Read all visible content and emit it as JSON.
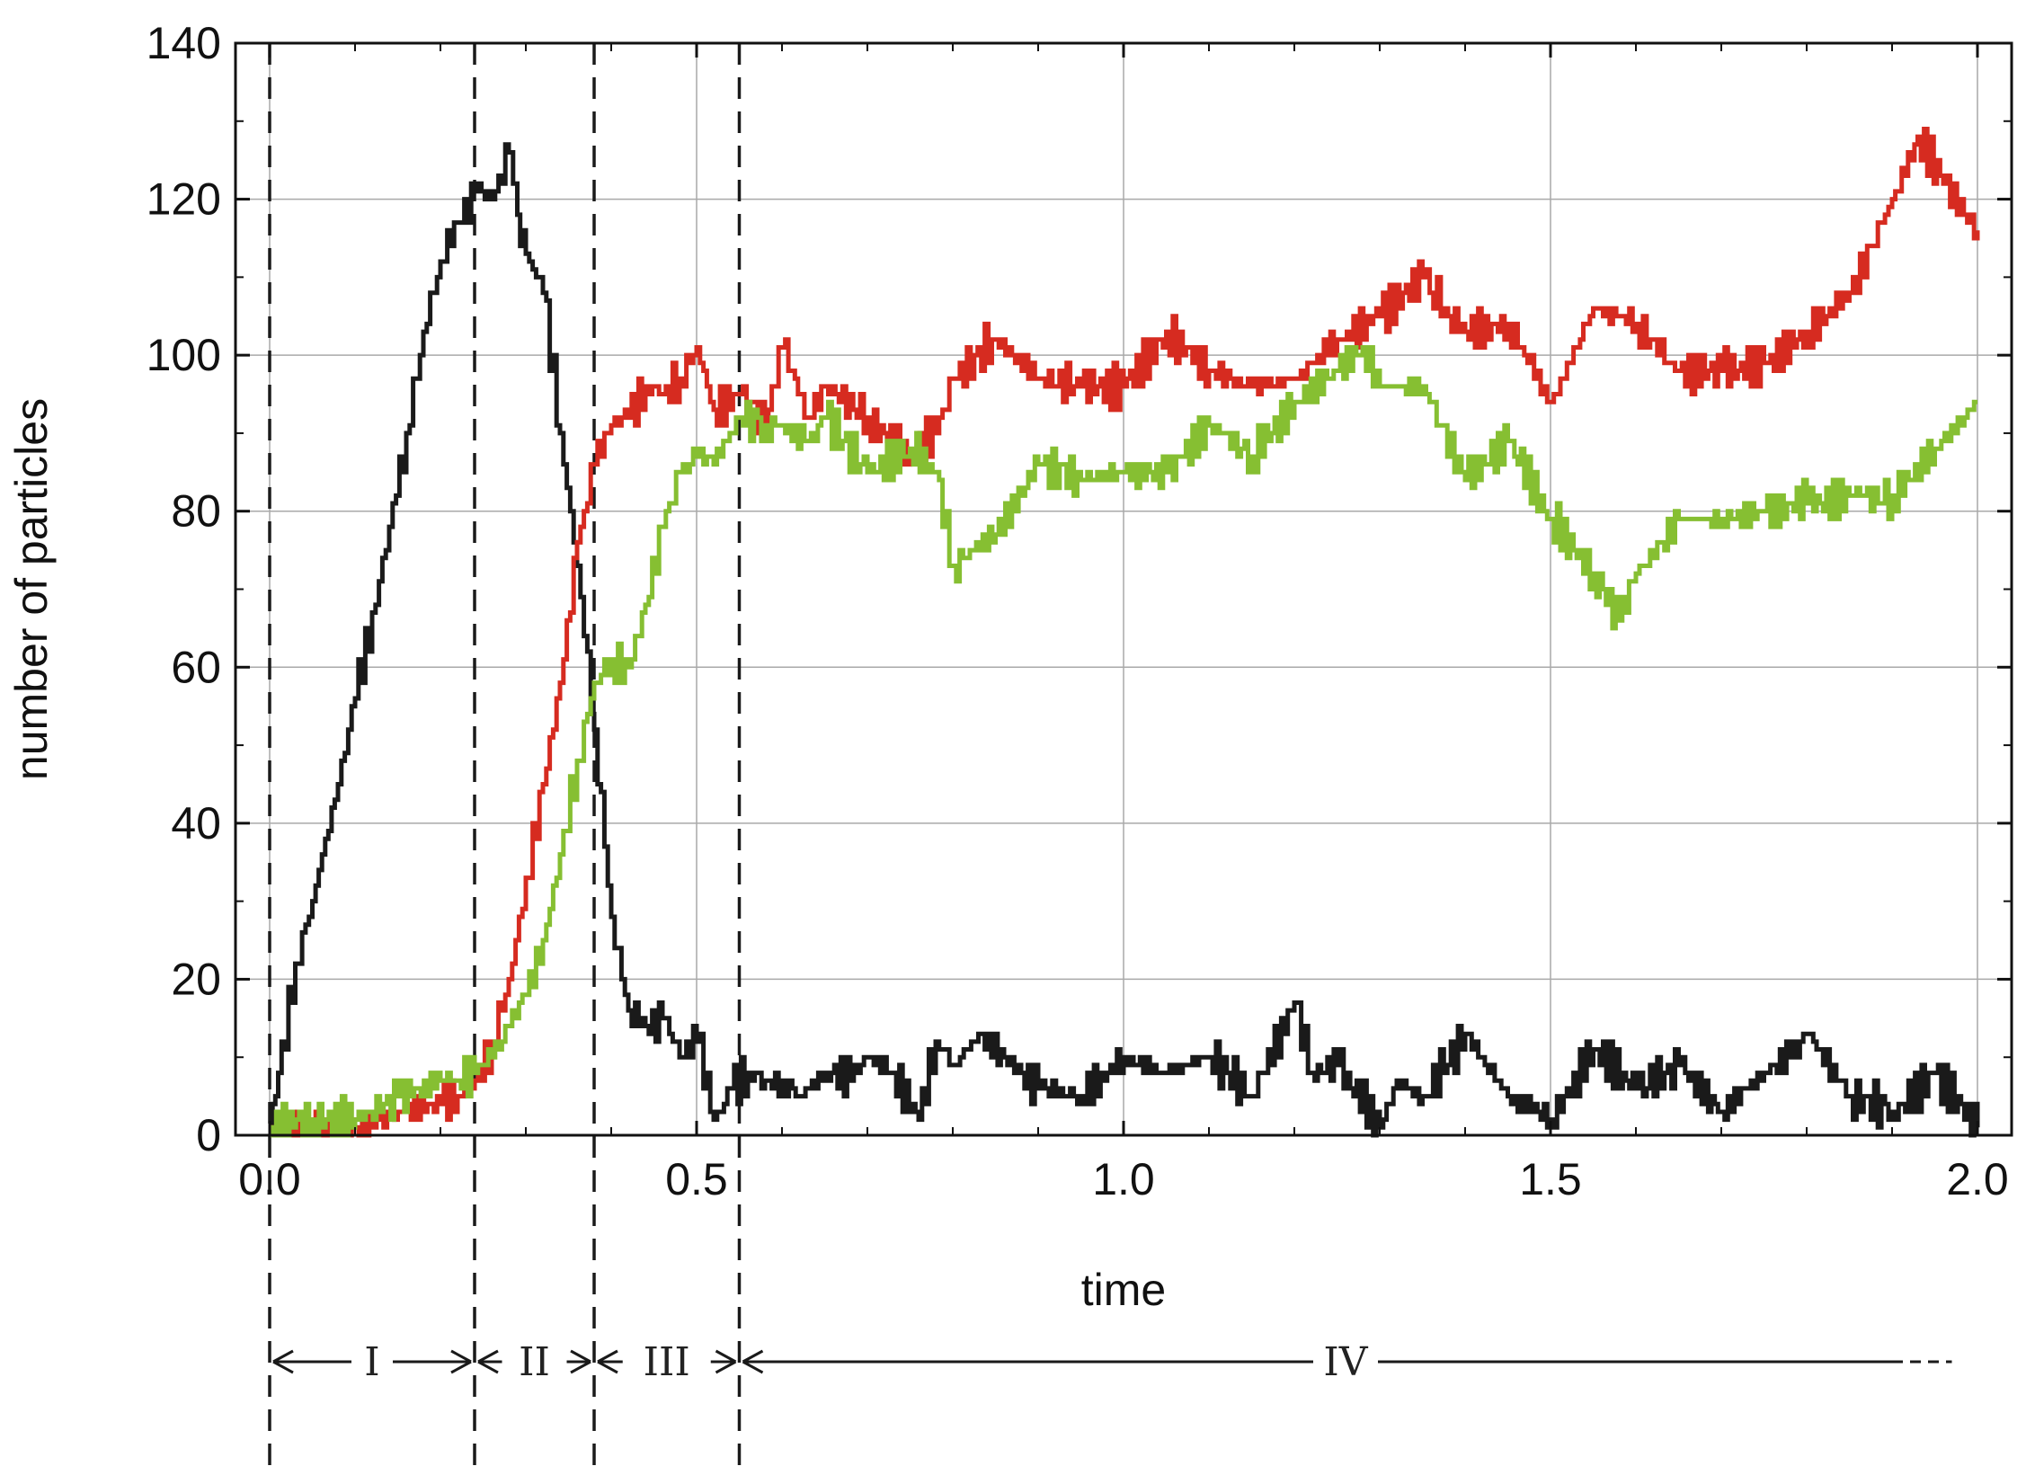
{
  "chart_data": {
    "type": "line",
    "title": "",
    "xlabel": "time",
    "ylabel": "number of particles",
    "xlim": [
      -0.04,
      2.04
    ],
    "ylim": [
      0,
      140
    ],
    "x_ticks": [
      0.0,
      0.5,
      1.0,
      1.5,
      2.0
    ],
    "x_tick_labels": [
      "0.0",
      "0.5",
      "1.0",
      "1.5",
      "2.0"
    ],
    "y_ticks": [
      0,
      20,
      40,
      60,
      80,
      100,
      120,
      140
    ],
    "y_tick_labels": [
      "0",
      "20",
      "40",
      "60",
      "80",
      "100",
      "120",
      "140"
    ],
    "grid": true,
    "legend": "none",
    "series": [
      {
        "color": "#1a1a1a",
        "x": [
          0.0,
          0.01,
          0.03,
          0.05,
          0.08,
          0.1,
          0.12,
          0.14,
          0.16,
          0.18,
          0.2,
          0.22,
          0.24,
          0.26,
          0.28,
          0.29,
          0.3,
          0.32,
          0.34,
          0.36,
          0.38,
          0.4,
          0.42,
          0.44,
          0.46,
          0.48,
          0.5,
          0.52,
          0.54,
          0.56,
          0.58,
          0.6,
          0.62,
          0.65,
          0.68,
          0.7,
          0.73,
          0.76,
          0.78,
          0.8,
          0.83,
          0.86,
          0.9,
          0.95,
          1.0,
          1.05,
          1.1,
          1.15,
          1.2,
          1.22,
          1.25,
          1.3,
          1.32,
          1.35,
          1.4,
          1.45,
          1.5,
          1.55,
          1.6,
          1.65,
          1.7,
          1.75,
          1.78,
          1.8,
          1.85,
          1.9,
          1.95,
          2.0
        ],
        "y": [
          0,
          8,
          22,
          30,
          45,
          56,
          67,
          78,
          90,
          103,
          112,
          117,
          121,
          120,
          126,
          118,
          113,
          108,
          90,
          73,
          52,
          28,
          16,
          14,
          15,
          10,
          12,
          2,
          6,
          8,
          7,
          7,
          5,
          8,
          7,
          10,
          8,
          2,
          12,
          9,
          13,
          10,
          6,
          5,
          10,
          8,
          10,
          5,
          17,
          8,
          9,
          1,
          7,
          5,
          13,
          5,
          2,
          11,
          6,
          9,
          3,
          8,
          10,
          13,
          5,
          3,
          8,
          1
        ]
      },
      {
        "color": "#d62b20",
        "x": [
          0.0,
          0.05,
          0.1,
          0.15,
          0.2,
          0.22,
          0.24,
          0.26,
          0.28,
          0.3,
          0.32,
          0.34,
          0.36,
          0.38,
          0.4,
          0.42,
          0.44,
          0.46,
          0.48,
          0.5,
          0.52,
          0.55,
          0.58,
          0.6,
          0.63,
          0.65,
          0.7,
          0.75,
          0.78,
          0.8,
          0.85,
          0.9,
          0.95,
          1.0,
          1.05,
          1.1,
          1.15,
          1.2,
          1.25,
          1.3,
          1.35,
          1.38,
          1.4,
          1.45,
          1.5,
          1.55,
          1.6,
          1.65,
          1.7,
          1.75,
          1.8,
          1.85,
          1.9,
          1.93,
          1.96,
          2.0
        ],
        "y": [
          1,
          1,
          1,
          3,
          4,
          5,
          7,
          12,
          20,
          33,
          45,
          58,
          76,
          86,
          91,
          92,
          96,
          95,
          97,
          101,
          93,
          95,
          91,
          101,
          92,
          96,
          92,
          87,
          90,
          97,
          102,
          97,
          96,
          96,
          103,
          98,
          96,
          97,
          102,
          105,
          110,
          105,
          103,
          104,
          94,
          106,
          104,
          98,
          98,
          99,
          103,
          108,
          120,
          128,
          122,
          116
        ]
      },
      {
        "color": "#86bf32",
        "x": [
          0.0,
          0.05,
          0.1,
          0.15,
          0.2,
          0.22,
          0.24,
          0.26,
          0.28,
          0.3,
          0.32,
          0.34,
          0.36,
          0.38,
          0.4,
          0.42,
          0.44,
          0.46,
          0.48,
          0.5,
          0.52,
          0.55,
          0.58,
          0.6,
          0.63,
          0.65,
          0.7,
          0.75,
          0.78,
          0.8,
          0.82,
          0.85,
          0.9,
          0.95,
          1.0,
          1.05,
          1.1,
          1.15,
          1.2,
          1.25,
          1.28,
          1.3,
          1.35,
          1.4,
          1.45,
          1.5,
          1.55,
          1.58,
          1.6,
          1.65,
          1.7,
          1.75,
          1.8,
          1.85,
          1.9,
          1.95,
          2.0
        ],
        "y": [
          1,
          2,
          2,
          5,
          7,
          7,
          8,
          10,
          14,
          18,
          25,
          36,
          48,
          58,
          61,
          60,
          68,
          78,
          85,
          87,
          86,
          92,
          91,
          91,
          89,
          92,
          85,
          88,
          85,
          73,
          75,
          77,
          86,
          84,
          85,
          85,
          91,
          87,
          94,
          98,
          101,
          96,
          96,
          84,
          89,
          79,
          72,
          66,
          72,
          79,
          79,
          80,
          81,
          82,
          82,
          88,
          94
        ]
      }
    ],
    "phase_boundaries": [
      0.0,
      0.24,
      0.38,
      0.55
    ],
    "phases": [
      {
        "label": "I",
        "from": 0.0,
        "to": 0.24
      },
      {
        "label": "II",
        "from": 0.24,
        "to": 0.38
      },
      {
        "label": "III",
        "from": 0.38,
        "to": 0.55
      },
      {
        "label": "IV",
        "from": 0.55,
        "to": 2.0
      }
    ]
  }
}
